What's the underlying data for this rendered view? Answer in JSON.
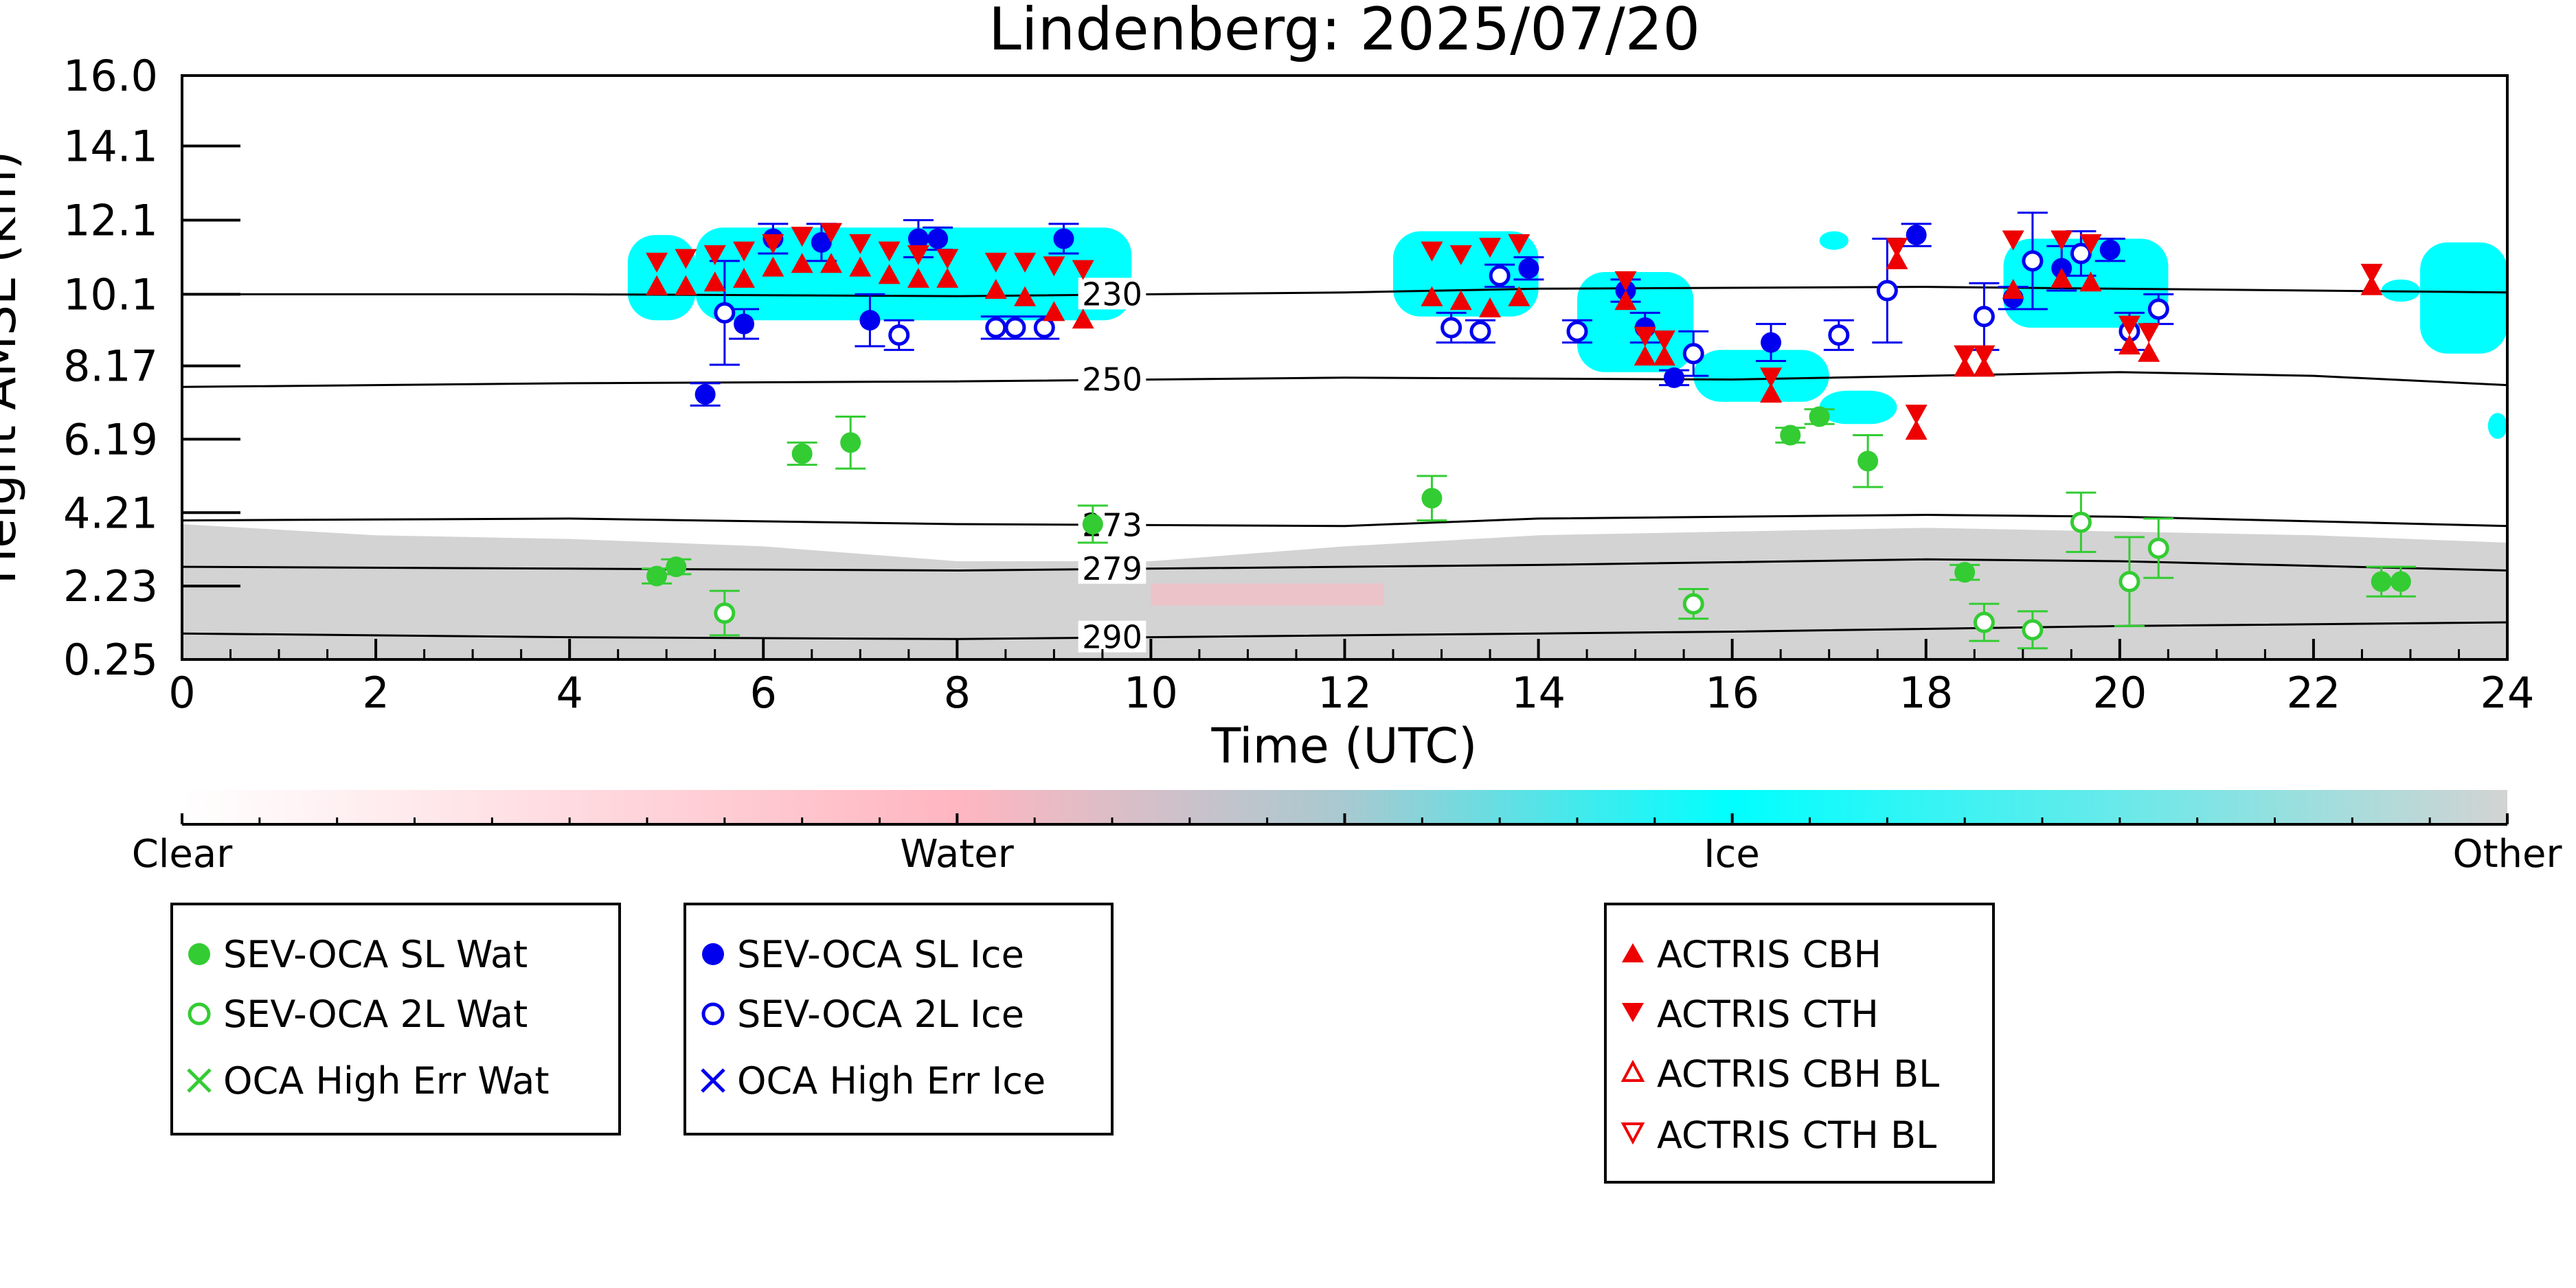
{
  "chart_data": {
    "type": "scatter",
    "title": "Lindenberg: 2025/07/20",
    "xlabel": "Time (UTC)",
    "ylabel": "Height AMSL (km)",
    "xlim": [
      0,
      24
    ],
    "ylim": [
      0.25,
      16.0
    ],
    "x_ticks": [
      0,
      2,
      4,
      6,
      8,
      10,
      12,
      14,
      16,
      18,
      20,
      22,
      24
    ],
    "x_tick_labels": [
      "0",
      "2",
      "4",
      "6",
      "8",
      "10",
      "12",
      "14",
      "16",
      "18",
      "20",
      "22",
      "24"
    ],
    "y_ticks": [
      0.25,
      2.23,
      4.21,
      6.19,
      8.17,
      10.1,
      12.1,
      14.1,
      16.0
    ],
    "y_tick_labels": [
      "0.25",
      "2.23",
      "4.21",
      "6.19",
      "8.17",
      "10.1",
      "12.1",
      "14.1",
      "16.0"
    ],
    "grid": false,
    "colorbar": {
      "labels": [
        "Clear",
        "Water",
        "Ice",
        "Other"
      ],
      "colors": [
        "#ffffff",
        "#ffb6c1",
        "#00ffff",
        "#d3d3d3"
      ]
    },
    "contours": [
      {
        "label": "230",
        "points": [
          [
            0,
            10.1
          ],
          [
            4,
            10.1
          ],
          [
            8,
            10.05
          ],
          [
            12,
            10.15
          ],
          [
            14,
            10.25
          ],
          [
            18,
            10.3
          ],
          [
            22,
            10.2
          ],
          [
            24,
            10.15
          ]
        ]
      },
      {
        "label": "250",
        "points": [
          [
            0,
            7.6
          ],
          [
            4,
            7.7
          ],
          [
            8,
            7.75
          ],
          [
            12,
            7.85
          ],
          [
            16,
            7.8
          ],
          [
            20,
            8.0
          ],
          [
            22,
            7.9
          ],
          [
            24,
            7.65
          ]
        ]
      },
      {
        "label": "273",
        "points": [
          [
            0,
            4.0
          ],
          [
            4,
            4.05
          ],
          [
            8,
            3.9
          ],
          [
            12,
            3.85
          ],
          [
            14,
            4.05
          ],
          [
            18,
            4.15
          ],
          [
            20,
            4.1
          ],
          [
            24,
            3.85
          ]
        ]
      },
      {
        "label": "279",
        "points": [
          [
            0,
            2.75
          ],
          [
            4,
            2.7
          ],
          [
            8,
            2.65
          ],
          [
            10,
            2.7
          ],
          [
            14,
            2.8
          ],
          [
            18,
            2.95
          ],
          [
            20,
            2.9
          ],
          [
            24,
            2.65
          ]
        ]
      },
      {
        "label": "290",
        "points": [
          [
            0,
            0.95
          ],
          [
            4,
            0.85
          ],
          [
            8,
            0.8
          ],
          [
            10,
            0.85
          ],
          [
            14,
            0.95
          ],
          [
            16,
            1.0
          ],
          [
            20,
            1.15
          ],
          [
            24,
            1.25
          ]
        ]
      }
    ],
    "series": [
      {
        "name": "SEV-OCA SL Wat",
        "marker": "filled-circle",
        "color": "#33cc33",
        "points": [
          [
            4.9,
            2.5
          ],
          [
            5.1,
            2.75
          ],
          [
            6.4,
            5.8
          ],
          [
            6.9,
            6.1
          ],
          [
            9.4,
            3.9
          ],
          [
            12.9,
            4.6
          ],
          [
            16.6,
            6.3
          ],
          [
            16.9,
            6.8
          ],
          [
            17.4,
            5.6
          ],
          [
            18.4,
            2.6
          ],
          [
            22.7,
            2.35
          ],
          [
            22.9,
            2.35
          ]
        ],
        "errors": [
          0.2,
          0.2,
          0.3,
          0.7,
          0.5,
          0.6,
          0.2,
          0.2,
          0.7,
          0.2,
          0.4,
          0.4
        ]
      },
      {
        "name": "SEV-OCA 2L Wat",
        "marker": "open-circle",
        "color": "#33cc33",
        "points": [
          [
            5.6,
            1.5
          ],
          [
            15.6,
            1.75
          ],
          [
            18.6,
            1.25
          ],
          [
            19.1,
            1.05
          ],
          [
            19.6,
            3.95
          ],
          [
            20.1,
            2.35
          ],
          [
            20.4,
            3.25
          ]
        ],
        "errors": [
          0.6,
          0.4,
          0.5,
          0.5,
          0.8,
          1.2,
          0.8
        ]
      },
      {
        "name": "OCA High Err Wat",
        "marker": "x",
        "color": "#33cc33",
        "points": []
      },
      {
        "name": "SEV-OCA SL Ice",
        "marker": "filled-circle",
        "color": "#0000ee",
        "points": [
          [
            5.4,
            7.4
          ],
          [
            5.8,
            9.3
          ],
          [
            6.1,
            11.6
          ],
          [
            6.6,
            11.5
          ],
          [
            7.1,
            9.4
          ],
          [
            7.6,
            11.6
          ],
          [
            7.8,
            11.6
          ],
          [
            9.1,
            11.6
          ],
          [
            13.9,
            10.8
          ],
          [
            14.9,
            10.2
          ],
          [
            15.1,
            9.2
          ],
          [
            15.4,
            7.85
          ],
          [
            16.4,
            8.8
          ],
          [
            17.9,
            11.7
          ],
          [
            18.9,
            10.0
          ],
          [
            19.4,
            10.8
          ],
          [
            19.9,
            11.3
          ]
        ],
        "errors": [
          0.3,
          0.4,
          0.4,
          0.5,
          0.7,
          0.5,
          0.3,
          0.4,
          0.3,
          0.3,
          0.4,
          0.2,
          0.5,
          0.3,
          0.3,
          0.6,
          0.3
        ]
      },
      {
        "name": "SEV-OCA 2L Ice",
        "marker": "open-circle",
        "color": "#0000ee",
        "points": [
          [
            5.6,
            9.6
          ],
          [
            7.4,
            9.0
          ],
          [
            8.4,
            9.2
          ],
          [
            8.6,
            9.2
          ],
          [
            8.9,
            9.2
          ],
          [
            13.1,
            9.2
          ],
          [
            13.4,
            9.1
          ],
          [
            13.6,
            10.6
          ],
          [
            14.4,
            9.1
          ],
          [
            15.6,
            8.5
          ],
          [
            17.1,
            9.0
          ],
          [
            17.6,
            10.2
          ],
          [
            18.6,
            9.5
          ],
          [
            19.1,
            11.0
          ],
          [
            19.6,
            11.2
          ],
          [
            20.1,
            9.1
          ],
          [
            20.4,
            9.7
          ]
        ],
        "errors": [
          1.4,
          0.4,
          0.3,
          0.3,
          0.3,
          0.4,
          0.3,
          0.3,
          0.3,
          0.6,
          0.4,
          1.4,
          0.9,
          1.3,
          0.6,
          0.5,
          0.4
        ]
      },
      {
        "name": "OCA High Err Ice",
        "marker": "x",
        "color": "#0000ee",
        "points": []
      },
      {
        "name": "ACTRIS CBH",
        "marker": "triangle-up",
        "color": "#ee0000",
        "points": [
          [
            4.9,
            10.3
          ],
          [
            5.2,
            10.3
          ],
          [
            5.5,
            10.4
          ],
          [
            5.8,
            10.5
          ],
          [
            6.1,
            10.8
          ],
          [
            6.4,
            10.9
          ],
          [
            6.7,
            10.9
          ],
          [
            7.0,
            10.8
          ],
          [
            7.3,
            10.6
          ],
          [
            7.6,
            10.5
          ],
          [
            7.9,
            10.5
          ],
          [
            8.4,
            10.2
          ],
          [
            8.7,
            10.0
          ],
          [
            9.0,
            9.6
          ],
          [
            9.3,
            9.4
          ],
          [
            12.9,
            10.0
          ],
          [
            13.2,
            9.9
          ],
          [
            13.5,
            9.7
          ],
          [
            13.8,
            10.0
          ],
          [
            14.9,
            9.9
          ],
          [
            15.1,
            8.4
          ],
          [
            15.3,
            8.4
          ],
          [
            16.4,
            7.4
          ],
          [
            17.7,
            11.0
          ],
          [
            17.9,
            6.4
          ],
          [
            18.4,
            8.1
          ],
          [
            18.6,
            8.1
          ],
          [
            18.9,
            10.2
          ],
          [
            19.4,
            10.5
          ],
          [
            19.7,
            10.4
          ],
          [
            20.1,
            8.7
          ],
          [
            20.3,
            8.5
          ],
          [
            22.6,
            10.3
          ]
        ]
      },
      {
        "name": "ACTRIS CTH",
        "marker": "triangle-down",
        "color": "#ee0000",
        "points": [
          [
            4.9,
            11.0
          ],
          [
            5.2,
            11.1
          ],
          [
            5.5,
            11.2
          ],
          [
            5.8,
            11.3
          ],
          [
            6.1,
            11.5
          ],
          [
            6.4,
            11.7
          ],
          [
            6.7,
            11.8
          ],
          [
            7.0,
            11.5
          ],
          [
            7.3,
            11.3
          ],
          [
            7.6,
            11.2
          ],
          [
            7.9,
            11.1
          ],
          [
            8.4,
            11.0
          ],
          [
            8.7,
            11.0
          ],
          [
            9.0,
            10.9
          ],
          [
            9.3,
            10.8
          ],
          [
            12.9,
            11.3
          ],
          [
            13.2,
            11.2
          ],
          [
            13.5,
            11.4
          ],
          [
            13.8,
            11.5
          ],
          [
            14.9,
            10.5
          ],
          [
            15.1,
            9.0
          ],
          [
            15.3,
            8.9
          ],
          [
            16.4,
            7.9
          ],
          [
            17.7,
            11.4
          ],
          [
            17.9,
            6.9
          ],
          [
            18.4,
            8.5
          ],
          [
            18.6,
            8.5
          ],
          [
            18.9,
            11.6
          ],
          [
            19.4,
            11.6
          ],
          [
            19.7,
            11.5
          ],
          [
            20.1,
            9.3
          ],
          [
            20.3,
            9.1
          ],
          [
            22.6,
            10.7
          ]
        ]
      },
      {
        "name": "ACTRIS CBH BL",
        "marker": "open-triangle-up",
        "color": "#ee0000",
        "points": []
      },
      {
        "name": "ACTRIS CTH BL",
        "marker": "open-triangle-down",
        "color": "#ee0000",
        "points": []
      }
    ],
    "legend_groups": [
      {
        "items": [
          "SEV-OCA SL Wat",
          "SEV-OCA 2L Wat",
          "OCA High Err Wat"
        ]
      },
      {
        "items": [
          "SEV-OCA SL Ice",
          "SEV-OCA 2L Ice",
          "OCA High Err Ice"
        ]
      },
      {
        "items": [
          "ACTRIS CBH",
          "ACTRIS CTH",
          "ACTRIS CBH BL",
          "ACTRIS CTH BL"
        ]
      }
    ]
  }
}
